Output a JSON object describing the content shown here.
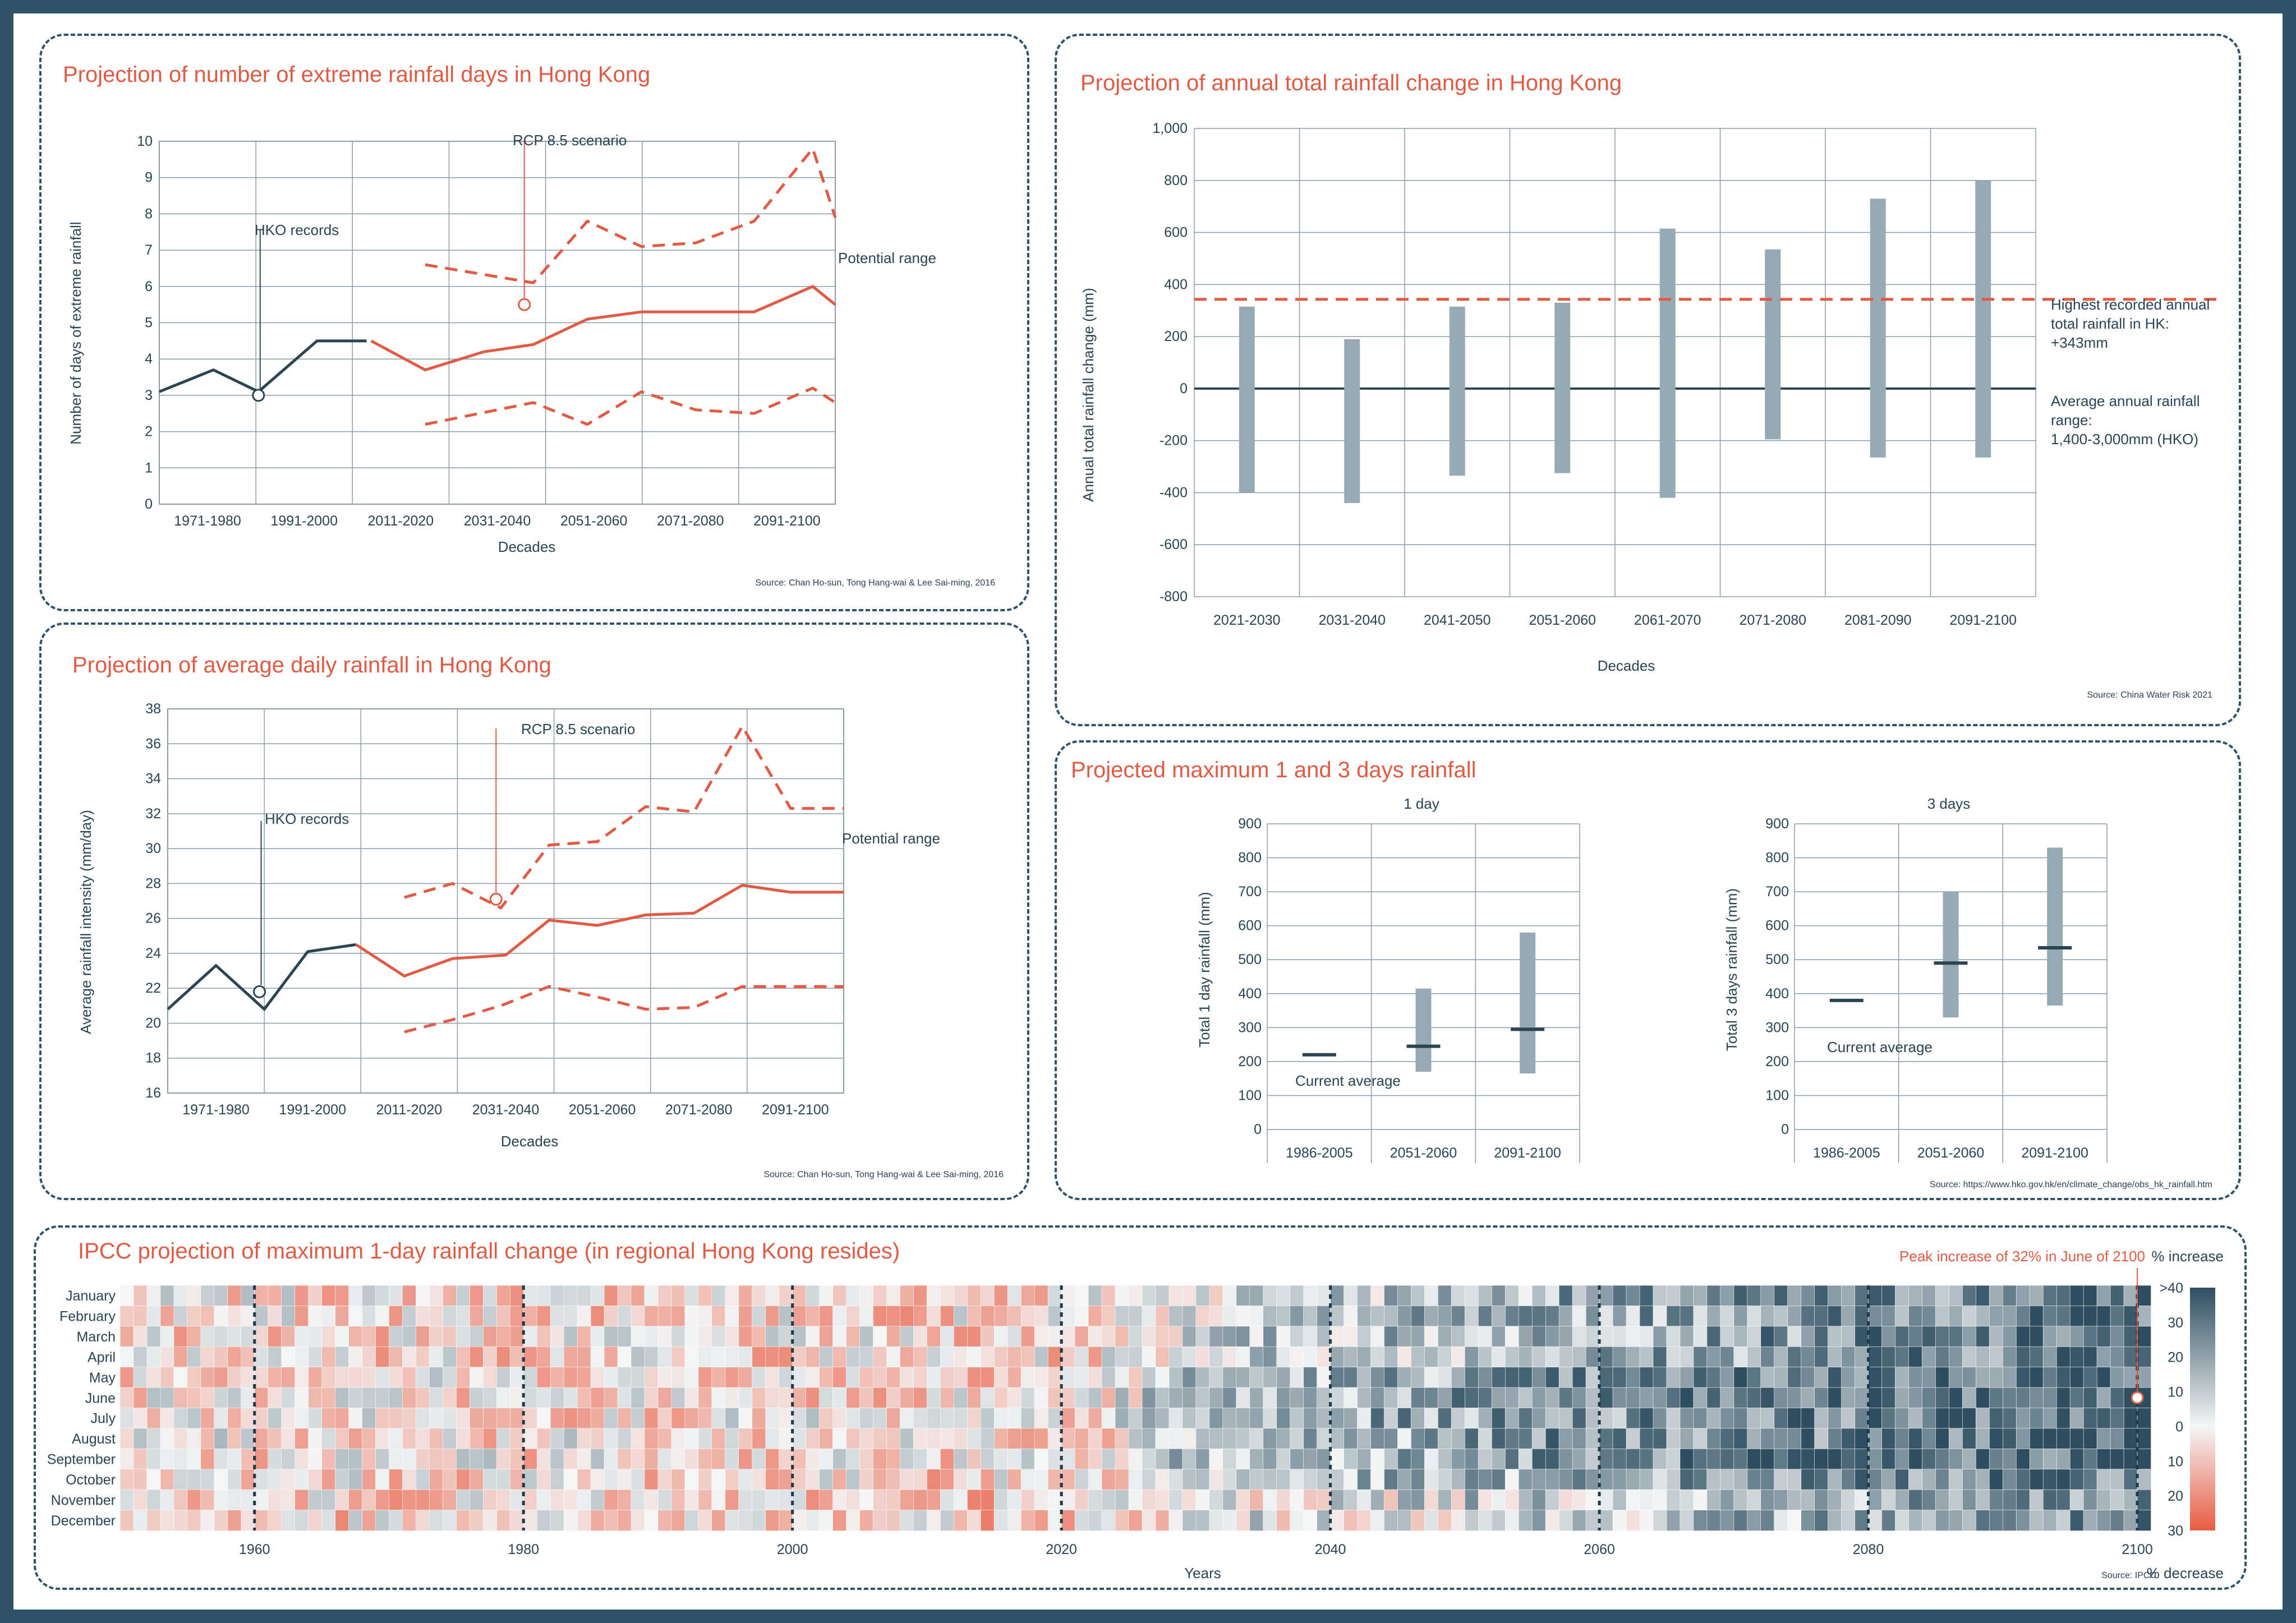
{
  "colors": {
    "dark": "#2b4452",
    "red": "#e05a44",
    "bar": "#97aab3",
    "grid": "#8a9da6"
  },
  "chart_data": [
    {
      "id": "extreme_days",
      "type": "line",
      "title": "Projection of number of extreme rainfall days in Hong Kong",
      "xlabel": "Decades",
      "ylabel": "Number of days of extreme rainfall",
      "ylim": [
        0,
        10
      ],
      "yticks": [
        "0",
        "1",
        "2",
        "3",
        "4",
        "5",
        "6",
        "7",
        "8",
        "9",
        "10"
      ],
      "xticks": [
        "1971-1980",
        "1991-2000",
        "2011-2020",
        "2031-2040",
        "2051-2060",
        "2071-2080",
        "2091-2100"
      ],
      "xrange": [
        1951,
        2101
      ],
      "hko_records": {
        "name": "HKO records",
        "x": [
          1951,
          1963,
          1973,
          1986,
          1997
        ],
        "y": [
          3.1,
          3.7,
          3.1,
          4.5,
          4.5
        ]
      },
      "projection": {
        "name": "RCP 8.5 scenario",
        "x": [
          1998,
          2010,
          2023,
          2034,
          2046,
          2058,
          2070,
          2083,
          2096,
          2101
        ],
        "y": [
          4.5,
          3.7,
          4.2,
          4.4,
          5.1,
          5.3,
          5.3,
          5.3,
          6.0,
          5.5
        ]
      },
      "upper": {
        "x": [
          2010,
          2034,
          2046,
          2058,
          2070,
          2083,
          2096,
          2101
        ],
        "y": [
          6.6,
          6.1,
          7.8,
          7.1,
          7.2,
          7.8,
          9.8,
          7.9
        ]
      },
      "lower": {
        "x": [
          2010,
          2034,
          2046,
          2058,
          2070,
          2083,
          2096,
          2101
        ],
        "y": [
          2.2,
          2.8,
          2.2,
          3.1,
          2.6,
          2.5,
          3.2,
          2.8
        ]
      },
      "hko_marker": {
        "x": 1973,
        "y": 3.0
      },
      "rcp_marker": {
        "x": 2032,
        "y": 5.5
      },
      "annotations": {
        "hko": "HKO records",
        "rcp": "RCP 8.5 scenario",
        "range": "Potential range"
      },
      "source": "Source: Chan Ho-sun, Tong Hang-wai & Lee Sai-ming, 2016"
    },
    {
      "id": "daily_rainfall",
      "type": "line",
      "title": "Projection of average daily rainfall in Hong Kong",
      "xlabel": "Decades",
      "ylabel": "Average rainfall intensity (mm/day)",
      "ylim": [
        16,
        38
      ],
      "yticks": [
        "16",
        "18",
        "20",
        "22",
        "24",
        "26",
        "28",
        "30",
        "32",
        "34",
        "36",
        "38"
      ],
      "xticks": [
        "1971-1980",
        "1991-2000",
        "2011-2020",
        "2031-2040",
        "2051-2060",
        "2071-2080",
        "2091-2100"
      ],
      "xrange": [
        1961,
        2101
      ],
      "hko_records": {
        "name": "HKO records",
        "x": [
          1961,
          1971,
          1981,
          1990,
          2000
        ],
        "y": [
          20.8,
          23.3,
          20.8,
          24.1,
          24.5
        ]
      },
      "projection": {
        "name": "RCP 8.5 scenario",
        "x": [
          2000,
          2010,
          2020,
          2031,
          2040,
          2050,
          2060,
          2070,
          2080,
          2090,
          2101
        ],
        "y": [
          24.5,
          22.7,
          23.7,
          23.9,
          25.9,
          25.6,
          26.2,
          26.3,
          27.9,
          27.5,
          27.5
        ]
      },
      "upper": {
        "x": [
          2010,
          2020,
          2030,
          2040,
          2050,
          2060,
          2070,
          2080,
          2090,
          2101
        ],
        "y": [
          27.2,
          28.0,
          26.6,
          30.2,
          30.4,
          32.4,
          32.1,
          37.0,
          32.3,
          32.3
        ]
      },
      "lower": {
        "x": [
          2010,
          2020,
          2030,
          2040,
          2050,
          2060,
          2070,
          2080,
          2090,
          2101
        ],
        "y": [
          19.5,
          20.2,
          21.0,
          22.1,
          21.5,
          20.8,
          20.9,
          22.1,
          22.1,
          22.1
        ]
      },
      "hko_marker": {
        "x": 1980,
        "y": 21.8
      },
      "rcp_marker": {
        "x": 2029,
        "y": 27.1
      },
      "annotations": {
        "hko": "HKO records",
        "rcp": "RCP 8.5 scenario",
        "range": "Potential range"
      },
      "source": "Source: Chan Ho-sun, Tong Hang-wai & Lee Sai-ming, 2016"
    },
    {
      "id": "annual_change",
      "type": "bar",
      "title": "Projection of annual total rainfall change in Hong Kong",
      "xlabel": "Decades",
      "ylabel": "Annual total rainfall change (mm)",
      "ylim": [
        -800,
        1000
      ],
      "yticks": [
        "-800",
        "-600",
        "-400",
        "-200",
        "0",
        "200",
        "400",
        "600",
        "800",
        "1,000"
      ],
      "categories": [
        "2021-2030",
        "2031-2040",
        "2041-2050",
        "2051-2060",
        "2061-2070",
        "2071-2080",
        "2081-2090",
        "2091-2100"
      ],
      "low": [
        -400,
        -440,
        -335,
        -325,
        -420,
        -195,
        -265,
        -265
      ],
      "high": [
        315,
        190,
        315,
        330,
        615,
        535,
        730,
        800
      ],
      "highest_recorded": 343,
      "annotations": {
        "highest": [
          "Highest recorded annual",
          "total rainfall in HK:",
          "+343mm"
        ],
        "average": [
          "Average annual rainfall",
          "range:",
          "1,400-3,000mm (HKO)"
        ]
      },
      "source": "Source: China Water Risk 2021"
    },
    {
      "id": "max_1day",
      "type": "bar",
      "panel_title": "Projected maximum 1 and 3 days rainfall",
      "title": "1 day",
      "ylabel": "Total 1 day rainfall (mm)",
      "ylim": [
        0,
        900
      ],
      "yticks": [
        "0",
        "100",
        "200",
        "300",
        "400",
        "500",
        "600",
        "700",
        "800",
        "900"
      ],
      "categories": [
        "1986-2005",
        "2051-2060",
        "2091-2100"
      ],
      "low": [
        null,
        170,
        165
      ],
      "high": [
        null,
        415,
        580
      ],
      "mean": [
        220,
        245,
        295
      ],
      "annotations": {
        "current": "Current average"
      }
    },
    {
      "id": "max_3day",
      "type": "bar",
      "title": "3 days",
      "ylabel": "Total 3 days rainfall (mm)",
      "ylim": [
        0,
        900
      ],
      "yticks": [
        "0",
        "100",
        "200",
        "300",
        "400",
        "500",
        "600",
        "700",
        "800",
        "900"
      ],
      "categories": [
        "1986-2005",
        "2051-2060",
        "2091-2100"
      ],
      "low": [
        null,
        330,
        365
      ],
      "high": [
        null,
        700,
        830
      ],
      "mean": [
        380,
        490,
        535
      ],
      "annotations": {
        "current": "Current average"
      },
      "source": "Source: https://www.hko.gov.hk/en/climate_change/obs_hk_rainfall.htm"
    },
    {
      "id": "ipcc_heatmap",
      "type": "heatmap",
      "title": "IPCC projection of maximum 1-day rainfall change (in regional Hong Kong resides)",
      "xlabel": "Years",
      "xrange": [
        1950,
        2100
      ],
      "xticks": [
        "1960",
        "1980",
        "2000",
        "2020",
        "2040",
        "2060",
        "2080",
        "2100"
      ],
      "months": [
        "January",
        "February",
        "March",
        "April",
        "May",
        "June",
        "July",
        "August",
        "September",
        "October",
        "November",
        "December"
      ],
      "colorbar": {
        "label_top": "% increase",
        "label_bottom": "% decrease",
        "increase_ticks": [
          ">40",
          "30",
          "20",
          "10",
          "0"
        ],
        "decrease_ticks": [
          "10",
          "20",
          "30"
        ]
      },
      "trend": {
        "x": [
          1950,
          2020,
          2030,
          2060,
          2100
        ],
        "mean_pct": [
          -3,
          -5,
          8,
          18,
          30
        ]
      },
      "peak": {
        "label": "Peak increase of 32% in June of 2100",
        "month": "June",
        "year": 2100,
        "value": 32
      },
      "source": "Source: IPCC"
    }
  ]
}
